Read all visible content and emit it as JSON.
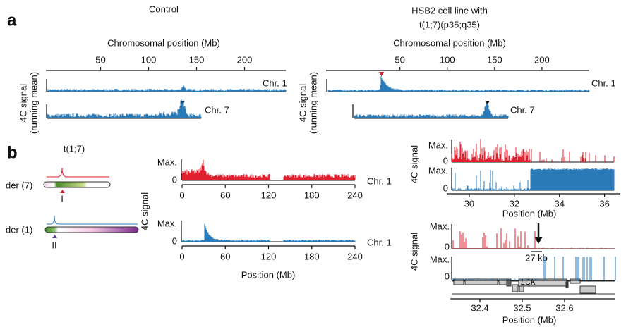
{
  "panel_a": {
    "label": "a",
    "y_label": [
      "4C signal",
      "(running mean)"
    ],
    "left": {
      "title": [
        "Control"
      ],
      "axis_label": "Chromosomal position (Mb)",
      "xlim": [
        -7,
        243
      ],
      "xticks": [
        50,
        100,
        150,
        200
      ],
      "chr1": "Chr. 1",
      "chr7": "Chr. 7"
    },
    "right": {
      "title": [
        "HSB2 cell line with",
        "t(1;7)(p35;q35)"
      ],
      "axis_label": "Chromosomal position (Mb)",
      "xlim": [
        -28,
        250
      ],
      "xticks": [
        50,
        100,
        150,
        200
      ],
      "chr1": "Chr. 1",
      "chr7": "Chr. 7"
    }
  },
  "panel_b": {
    "label": "b",
    "translocation": "t(1;7)",
    "der7": "der (7)",
    "der1": "der (1)",
    "breakpoint_7": "I",
    "breakpoint_1": "II",
    "y_label": "4C signal",
    "y_max": "Max.",
    "y_zero": "0",
    "genome": {
      "xlim": [
        0,
        240
      ],
      "xticks": [
        0,
        60,
        120,
        180,
        240
      ],
      "chr": "Chr. 1",
      "x_label": "Position (Mb)"
    },
    "zoom": {
      "xlim": [
        29,
        36.7
      ],
      "xticks": [
        30,
        32,
        34,
        36
      ],
      "x_label": "Position (Mb)"
    },
    "detail": {
      "xlim": [
        32.33,
        32.72
      ],
      "xticks": [
        32.4,
        32.5,
        32.6
      ],
      "x_label": "Position (Mb)",
      "distance": "27 kb",
      "gene": "LCK"
    }
  }
}
